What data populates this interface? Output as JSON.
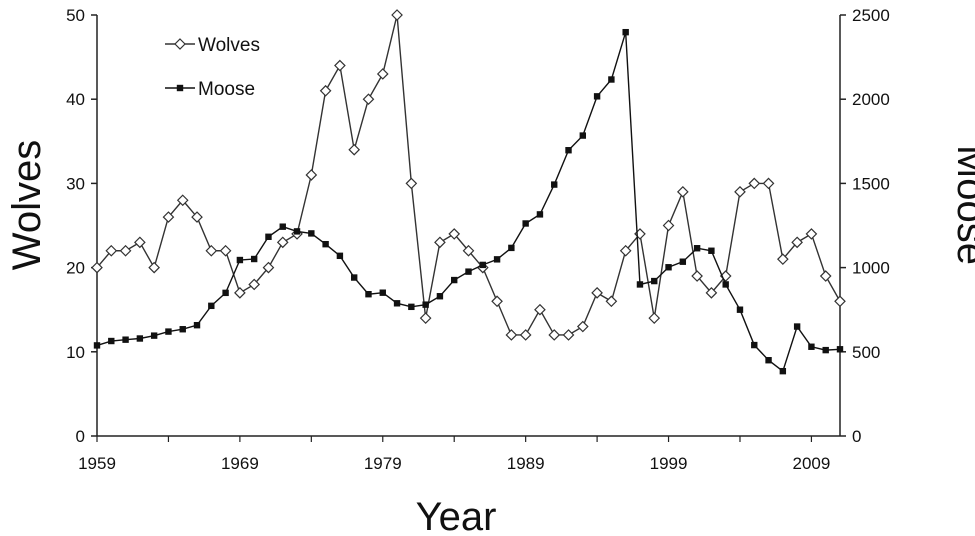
{
  "chart_data": {
    "type": "line",
    "xlabel": "Year",
    "ylabel_left": "Wolves",
    "ylabel_right": "Moose",
    "xlim": [
      1959,
      2011
    ],
    "xticks": [
      1959,
      1969,
      1979,
      1989,
      1999,
      2009
    ],
    "ylim_left": [
      0,
      50
    ],
    "yticks_left": [
      0,
      10,
      20,
      30,
      40,
      50
    ],
    "ylim_right": [
      0,
      2500
    ],
    "yticks_right": [
      0,
      500,
      1000,
      1500,
      2000,
      2500
    ],
    "legend_position": "top-left",
    "x": [
      1959,
      1960,
      1961,
      1962,
      1963,
      1964,
      1965,
      1966,
      1967,
      1968,
      1969,
      1970,
      1971,
      1972,
      1973,
      1974,
      1975,
      1976,
      1977,
      1978,
      1979,
      1980,
      1981,
      1982,
      1983,
      1984,
      1985,
      1986,
      1987,
      1988,
      1989,
      1990,
      1991,
      1992,
      1993,
      1994,
      1995,
      1996,
      1997,
      1998,
      1999,
      2000,
      2001,
      2002,
      2003,
      2004,
      2005,
      2006,
      2007,
      2008,
      2009,
      2010,
      2011
    ],
    "series": [
      {
        "name": "Wolves",
        "axis": "left",
        "marker": "open-diamond",
        "color": "#333333",
        "values": [
          20,
          22,
          22,
          23,
          20,
          26,
          28,
          26,
          22,
          22,
          17,
          18,
          20,
          23,
          24,
          31,
          41,
          44,
          34,
          40,
          43,
          50,
          30,
          14,
          23,
          24,
          22,
          20,
          16,
          12,
          12,
          15,
          12,
          12,
          13,
          17,
          16,
          22,
          24,
          14,
          25,
          29,
          19,
          17,
          19,
          29,
          30,
          30,
          21,
          23,
          24,
          19,
          16
        ]
      },
      {
        "name": "Moose",
        "axis": "right",
        "marker": "filled-square",
        "color": "#111111",
        "values": [
          538,
          564,
          572,
          579,
          596,
          620,
          634,
          658,
          773,
          850,
          1045,
          1051,
          1183,
          1243,
          1215,
          1203,
          1139,
          1070,
          941,
          842,
          851,
          788,
          767,
          780,
          830,
          926,
          976,
          1016,
          1049,
          1117,
          1262,
          1316,
          1493,
          1697,
          1784,
          2017,
          2117,
          2398,
          900,
          920,
          1002,
          1035,
          1115,
          1100,
          900,
          750,
          540,
          450,
          385,
          650,
          530,
          510,
          515
        ]
      }
    ]
  }
}
